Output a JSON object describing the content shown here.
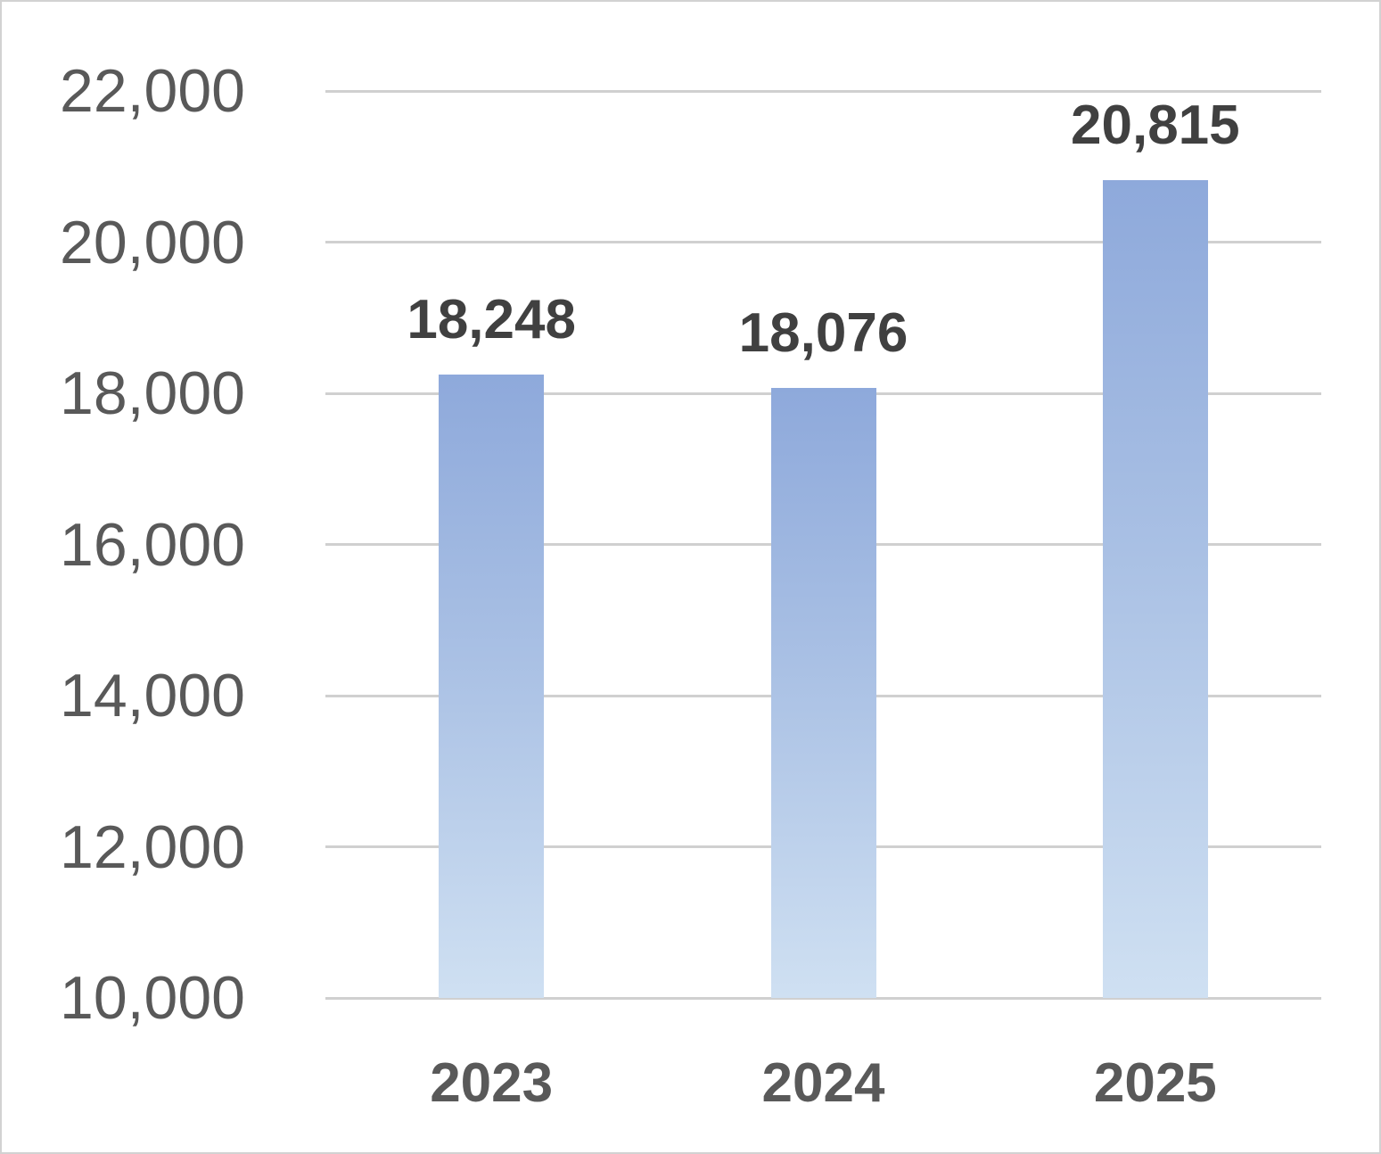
{
  "chart_data": {
    "type": "bar",
    "categories": [
      "2023",
      "2024",
      "2025"
    ],
    "values": [
      18248,
      18076,
      20815
    ],
    "data_labels": [
      "18,248",
      "18,076",
      "20,815"
    ],
    "title": "",
    "xlabel": "",
    "ylabel": "",
    "ylim": [
      10000,
      22000
    ],
    "ytick_step": 2000,
    "yticks": [
      {
        "value": 10000,
        "label": "10,000"
      },
      {
        "value": 12000,
        "label": "12,000"
      },
      {
        "value": 14000,
        "label": "14,000"
      },
      {
        "value": 16000,
        "label": "16,000"
      },
      {
        "value": 18000,
        "label": "18,000"
      },
      {
        "value": 20000,
        "label": "20,000"
      },
      {
        "value": 22000,
        "label": "22,000"
      }
    ],
    "grid": true,
    "legend": "none",
    "colors": {
      "bar_gradient_top": "#8EA9DB",
      "bar_gradient_bottom": "#CFE0F2",
      "gridline": "#d0d0d0",
      "ytick_label": "#595959",
      "xtick_label": "#595959",
      "data_label": "#404040",
      "background": "#ffffff",
      "frame_border": "#d2d2d2"
    }
  }
}
